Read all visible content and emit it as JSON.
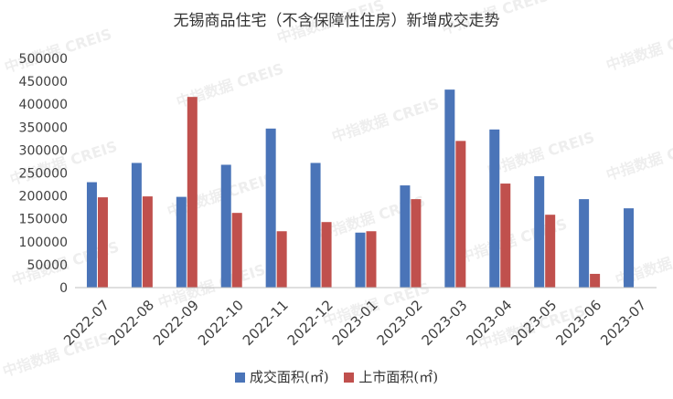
{
  "chart_data": {
    "type": "bar",
    "title": "无锡商品住宅（不含保障性住房）新增成交走势",
    "categories": [
      "2022-07",
      "2022-08",
      "2022-09",
      "2022-10",
      "2022-11",
      "2022-12",
      "2023-01",
      "2023-02",
      "2023-03",
      "2023-04",
      "2023-05",
      "2023-06",
      "2023-07"
    ],
    "series": [
      {
        "name": "成交面积(㎡)",
        "color": "#4a74b8",
        "values": [
          230000,
          272000,
          198000,
          268000,
          347000,
          272000,
          120000,
          223000,
          432000,
          345000,
          243000,
          193000,
          173000
        ]
      },
      {
        "name": "上市面积(㎡)",
        "color": "#c0504d",
        "values": [
          197000,
          199000,
          416000,
          163000,
          123000,
          143000,
          123000,
          193000,
          320000,
          227000,
          159000,
          30000,
          null
        ]
      }
    ],
    "ylim": [
      0,
      500000
    ],
    "yticks": [
      0,
      50000,
      100000,
      150000,
      200000,
      250000,
      300000,
      350000,
      400000,
      450000,
      500000
    ],
    "grid": false,
    "legend_position": "bottom"
  },
  "watermark": {
    "text": "中指数据 CREIS"
  }
}
